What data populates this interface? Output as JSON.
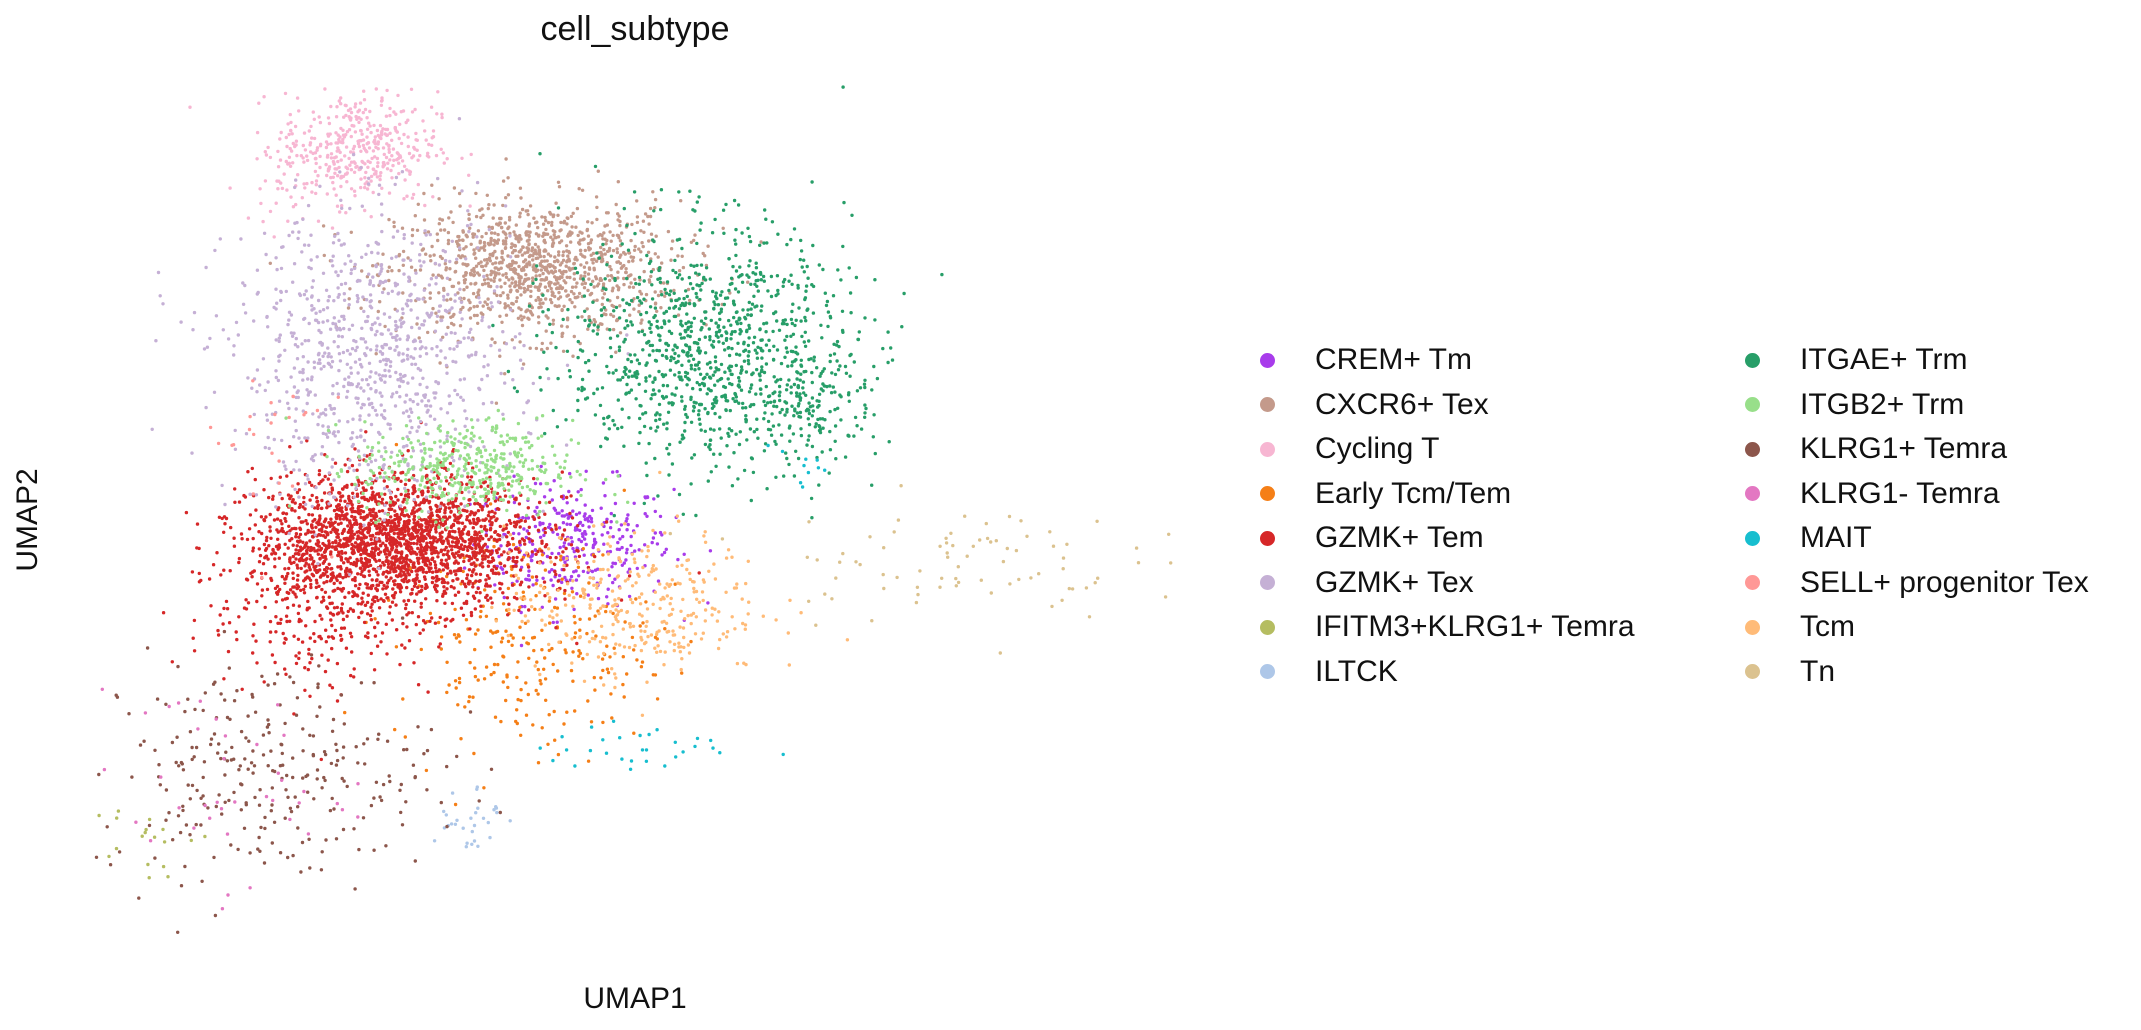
{
  "chart_data": {
    "type": "scatter",
    "title": "cell_subtype",
    "xlabel": "UMAP1",
    "ylabel": "UMAP2",
    "grid": false,
    "axes_visible": false,
    "legend_placement": "right, two columns",
    "point_size": "small",
    "series": [
      {
        "name": "CREM+ Tm",
        "color": "#a83ceb",
        "clusters": [
          {
            "cx": 6.3,
            "cy": 4.2,
            "sx": 0.7,
            "sy": 0.5,
            "n": 320
          }
        ]
      },
      {
        "name": "CXCR6+ Tex",
        "color": "#c49a8b",
        "clusters": [
          {
            "cx": 5.8,
            "cy": 8.7,
            "sx": 1.0,
            "sy": 0.55,
            "n": 1100
          }
        ]
      },
      {
        "name": "Cycling T",
        "color": "#f7b6d2",
        "clusters": [
          {
            "cx": 3.3,
            "cy": 10.7,
            "sx": 0.55,
            "sy": 0.45,
            "n": 380
          },
          {
            "cx": 2.6,
            "cy": 10.3,
            "sx": 0.5,
            "sy": 0.5,
            "n": 60
          }
        ]
      },
      {
        "name": "Early Tcm/Tem",
        "color": "#f57f17",
        "clusters": [
          {
            "cx": 5.6,
            "cy": 2.6,
            "sx": 0.9,
            "sy": 0.9,
            "n": 260
          }
        ]
      },
      {
        "name": "GZMK+ Tem",
        "color": "#d62728",
        "clusters": [
          {
            "cx": 3.8,
            "cy": 4.2,
            "sx": 1.0,
            "sy": 0.55,
            "n": 2200
          },
          {
            "cx": 2.7,
            "cy": 3.0,
            "sx": 0.8,
            "sy": 0.7,
            "n": 200
          }
        ]
      },
      {
        "name": "GZMK+ Tex",
        "color": "#c5b0d5",
        "clusters": [
          {
            "cx": 3.5,
            "cy": 7.2,
            "sx": 1.0,
            "sy": 1.2,
            "n": 900
          }
        ]
      },
      {
        "name": "IFITM3+KLRG1+ Temra",
        "color": "#b5bd61",
        "clusters": [
          {
            "cx": 0.2,
            "cy": -0.6,
            "sx": 0.35,
            "sy": 0.35,
            "n": 18
          }
        ]
      },
      {
        "name": "ILTCK",
        "color": "#aec7e8",
        "clusters": [
          {
            "cx": 4.8,
            "cy": -0.3,
            "sx": 0.25,
            "sy": 0.3,
            "n": 30
          }
        ]
      },
      {
        "name": "ITGAE+ Trm",
        "color": "#279e68",
        "clusters": [
          {
            "cx": 8.2,
            "cy": 7.4,
            "sx": 1.0,
            "sy": 1.0,
            "n": 1000
          },
          {
            "cx": 9.6,
            "cy": 6.5,
            "sx": 0.6,
            "sy": 0.5,
            "n": 150
          }
        ]
      },
      {
        "name": "ITGB2+ Trm",
        "color": "#98df8a",
        "clusters": [
          {
            "cx": 4.8,
            "cy": 5.4,
            "sx": 0.75,
            "sy": 0.4,
            "n": 420
          }
        ]
      },
      {
        "name": "KLRG1+ Temra",
        "color": "#8c564b",
        "clusters": [
          {
            "cx": 2.0,
            "cy": 0.5,
            "sx": 1.2,
            "sy": 0.9,
            "n": 280
          }
        ]
      },
      {
        "name": "KLRG1- Temra",
        "color": "#e377c2",
        "clusters": [
          {
            "cx": 1.2,
            "cy": 0.2,
            "sx": 1.0,
            "sy": 0.8,
            "n": 40
          }
        ]
      },
      {
        "name": "MAIT",
        "color": "#17becf",
        "clusters": [
          {
            "cx": 7.3,
            "cy": 0.8,
            "sx": 0.7,
            "sy": 0.2,
            "n": 30
          },
          {
            "cx": 9.5,
            "cy": 5.4,
            "sx": 0.3,
            "sy": 0.3,
            "n": 10
          }
        ]
      },
      {
        "name": "SELL+ progenitor Tex",
        "color": "#ff9896",
        "clusters": [
          {
            "cx": 2.0,
            "cy": 6.0,
            "sx": 0.4,
            "sy": 0.8,
            "n": 25
          }
        ]
      },
      {
        "name": "Tcm",
        "color": "#ffbb78",
        "clusters": [
          {
            "cx": 7.2,
            "cy": 3.2,
            "sx": 0.9,
            "sy": 0.6,
            "n": 320
          }
        ]
      },
      {
        "name": "Tn",
        "color": "#dbc28f",
        "clusters": [
          {
            "cx": 11.5,
            "cy": 3.9,
            "sx": 1.3,
            "sy": 0.5,
            "n": 80
          }
        ]
      }
    ],
    "xlim": [
      -0.5,
      15
    ],
    "ylim": [
      -2.5,
      11.8
    ]
  }
}
